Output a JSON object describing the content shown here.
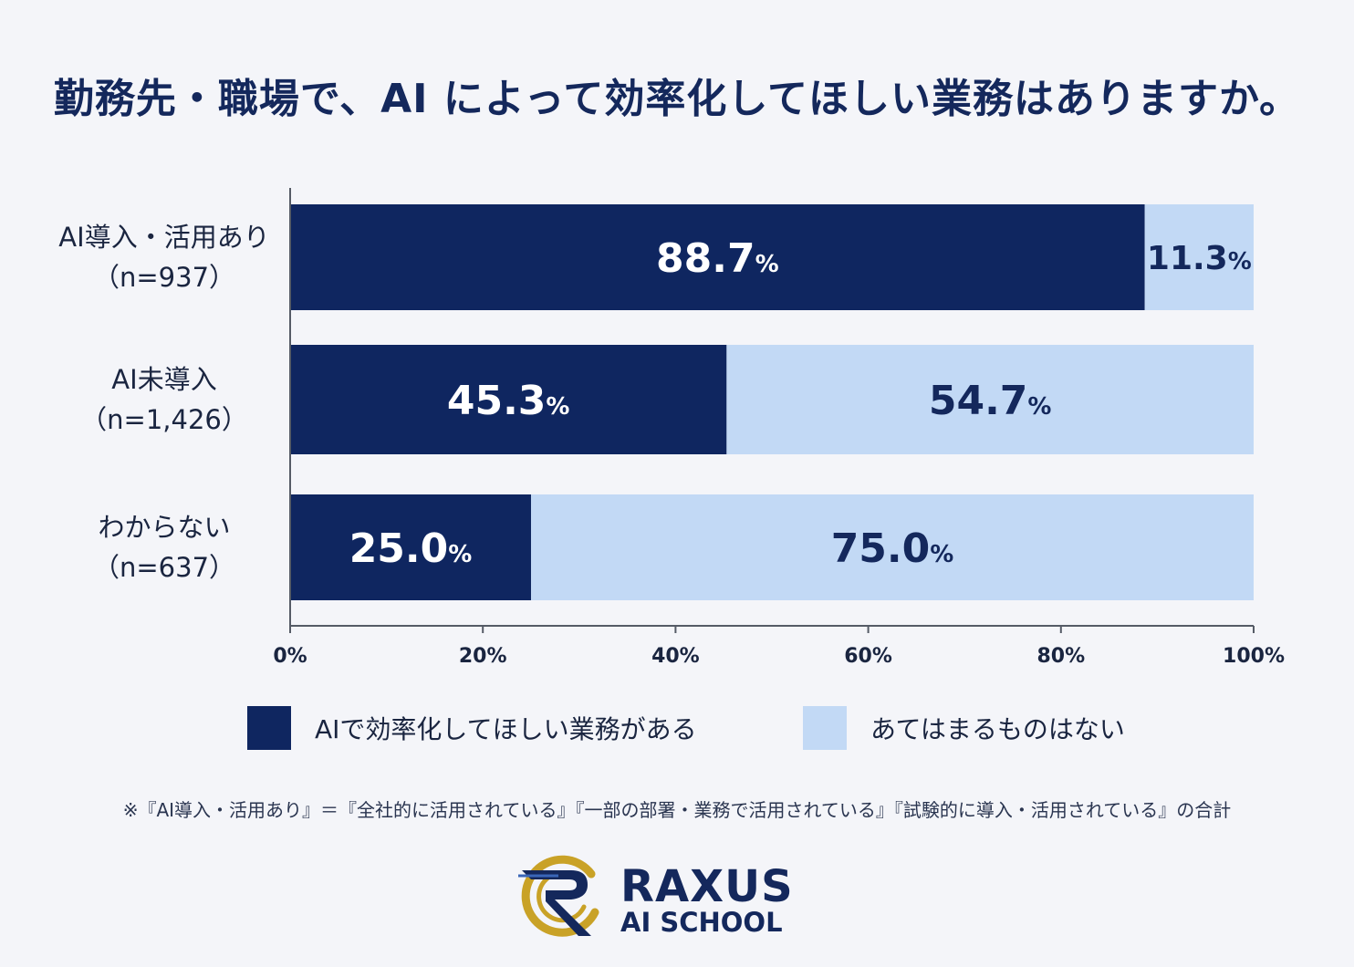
{
  "title": "勤務先・職場で、AI によって効率化してほしい業務はありますか。",
  "chart_data": {
    "type": "bar",
    "orientation": "horizontal",
    "stacked": true,
    "categories": [
      {
        "label": "AI導入・活用あり",
        "sample": "（n=937）"
      },
      {
        "label": "AI未導入",
        "sample": "（n=1,426）"
      },
      {
        "label": "わからない",
        "sample": "（n=637）"
      }
    ],
    "series": [
      {
        "name": "AIで効率化してほしい業務がある",
        "color": "#0f2660",
        "values": [
          88.7,
          45.3,
          25.0
        ],
        "labels": [
          "88.7",
          "45.3",
          "25.0"
        ]
      },
      {
        "name": "あてはまるものはない",
        "color": "#c2d9f5",
        "values": [
          11.3,
          54.7,
          75.0
        ],
        "labels": [
          "11.3",
          "54.7",
          "75.0"
        ]
      }
    ],
    "unit": "%",
    "xlim": [
      0,
      100
    ],
    "xticks": [
      "0%",
      "20%",
      "40%",
      "60%",
      "80%",
      "100%"
    ],
    "legend": "bottom"
  },
  "footnote": "※『AI導入・活用あり』＝『全社的に活用されている』『一部の部署・業務で活用されている』『試験的に導入・活用されている』の合計",
  "logo": {
    "main": "RAXUS",
    "sub": "AI SCHOOL",
    "ring_color": "#c9a227",
    "mark_color": "#14285c"
  }
}
